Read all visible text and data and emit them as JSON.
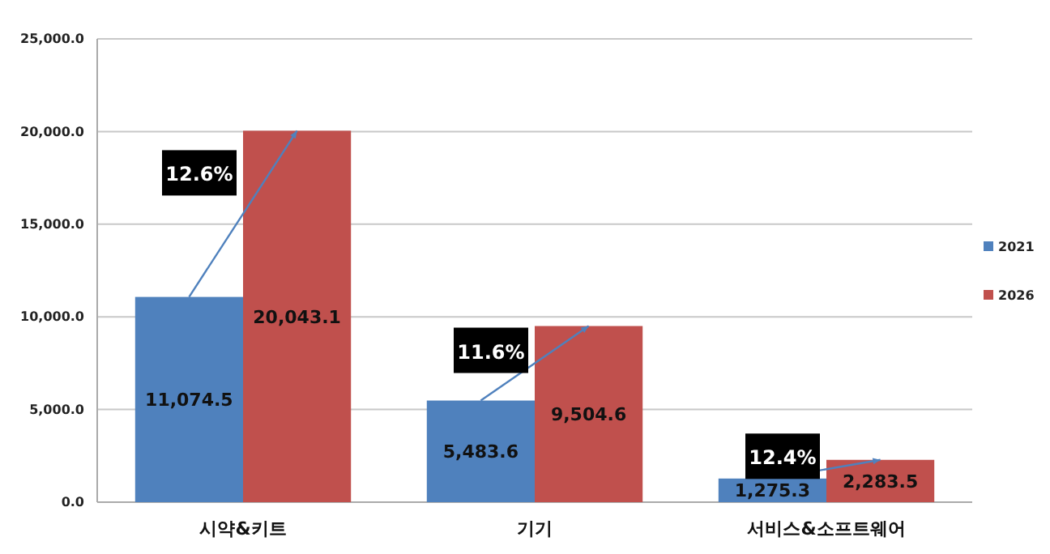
{
  "chart_data": {
    "type": "bar",
    "categories": [
      "시약&키트",
      "기기",
      "서비스&소프트웨어"
    ],
    "series": [
      {
        "name": "2021",
        "color": "#4f81bd",
        "values": [
          11074.5,
          5483.6,
          1275.3
        ],
        "value_labels": [
          "11,074.5",
          "5,483.6",
          "1,275.3"
        ]
      },
      {
        "name": "2026",
        "color": "#c0504d",
        "values": [
          20043.1,
          9504.6,
          2283.5
        ],
        "value_labels": [
          "20,043.1",
          "9,504.6",
          "2,283.5"
        ]
      }
    ],
    "ylim": [
      0,
      25000
    ],
    "yticks": [
      {
        "value": 0,
        "label": "0.0"
      },
      {
        "value": 5000,
        "label": "5,000.0"
      },
      {
        "value": 10000,
        "label": "10,000.0"
      },
      {
        "value": 15000,
        "label": "15,000.0"
      },
      {
        "value": 20000,
        "label": "20,000.0"
      },
      {
        "value": 25000,
        "label": "25,000.0"
      }
    ],
    "grid": "y",
    "legend": "right",
    "annotations": [
      {
        "text": "12.6%",
        "x": "시약&키트",
        "y": 20043.1
      },
      {
        "text": "11.6%",
        "x": "기기",
        "y": 9504.6
      },
      {
        "text": "12.4%",
        "x": "서비스&소프트웨어",
        "y": 2283.5
      }
    ]
  }
}
